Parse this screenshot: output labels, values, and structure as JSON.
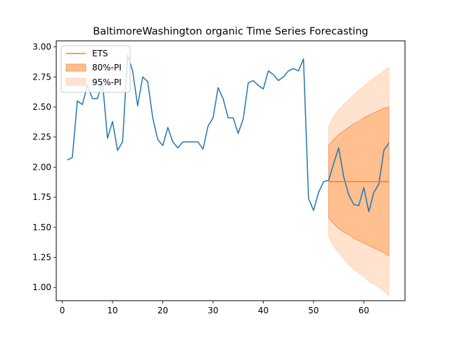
{
  "chart_data": {
    "type": "line",
    "title": "BaltimoreWashington organic Time Series Forecasting",
    "xlabel": "",
    "ylabel": "",
    "xlim": [
      -1.2,
      68.2
    ],
    "ylim": [
      0.89,
      3.05
    ],
    "xticks": [
      0,
      10,
      20,
      30,
      40,
      50,
      60
    ],
    "yticks": [
      1.0,
      1.25,
      1.5,
      1.75,
      2.0,
      2.25,
      2.5,
      2.75,
      3.0
    ],
    "ytick_labels": [
      "1.00",
      "1.25",
      "1.50",
      "1.75",
      "2.00",
      "2.25",
      "2.50",
      "2.75",
      "3.00"
    ],
    "grid": false,
    "legend_position": "top-left",
    "series": [
      {
        "name": "",
        "color": "#1f77b4",
        "x": [
          1,
          2,
          3,
          4,
          5,
          6,
          7,
          8,
          9,
          10,
          11,
          12,
          13,
          14,
          15,
          16,
          17,
          18,
          19,
          20,
          21,
          22,
          23,
          24,
          25,
          26,
          27,
          28,
          29,
          30,
          31,
          32,
          33,
          34,
          35,
          36,
          37,
          38,
          39,
          40,
          41,
          42,
          43,
          44,
          45,
          46,
          47,
          48,
          49,
          50,
          51,
          52,
          53,
          54,
          55,
          56,
          57,
          58,
          59,
          60,
          61,
          62,
          63,
          64,
          65
        ],
        "values": [
          2.06,
          2.08,
          2.55,
          2.52,
          2.68,
          2.57,
          2.57,
          2.71,
          2.24,
          2.38,
          2.14,
          2.21,
          2.93,
          2.8,
          2.51,
          2.75,
          2.71,
          2.41,
          2.23,
          2.18,
          2.33,
          2.21,
          2.16,
          2.21,
          2.21,
          2.21,
          2.21,
          2.15,
          2.34,
          2.41,
          2.66,
          2.57,
          2.41,
          2.41,
          2.28,
          2.4,
          2.7,
          2.72,
          2.68,
          2.65,
          2.8,
          2.77,
          2.72,
          2.75,
          2.8,
          2.82,
          2.8,
          2.9,
          1.74,
          1.64,
          1.79,
          1.88,
          1.89,
          2.03,
          2.16,
          1.92,
          1.77,
          1.69,
          1.68,
          1.83,
          1.63,
          1.79,
          1.86,
          2.14,
          2.2
        ]
      },
      {
        "name": "ETS",
        "color": "#ff7f0e",
        "x": [
          53,
          65
        ],
        "values": [
          1.88,
          1.88
        ]
      }
    ],
    "intervals": [
      {
        "name": "95%-PI",
        "color": "#ffe3cf",
        "x": [
          53,
          54,
          55,
          56,
          57,
          58,
          59,
          60,
          61,
          62,
          63,
          64,
          65
        ],
        "lower": [
          1.42,
          1.34,
          1.29,
          1.24,
          1.19,
          1.15,
          1.12,
          1.09,
          1.05,
          1.03,
          1.0,
          0.97,
          0.93
        ],
        "upper": [
          2.34,
          2.42,
          2.48,
          2.52,
          2.56,
          2.6,
          2.64,
          2.67,
          2.71,
          2.74,
          2.77,
          2.8,
          2.83
        ]
      },
      {
        "name": "80%-PI",
        "color": "#ffbf8f",
        "x": [
          53,
          54,
          55,
          56,
          57,
          58,
          59,
          60,
          61,
          62,
          63,
          64,
          65
        ],
        "lower": [
          1.58,
          1.53,
          1.49,
          1.46,
          1.44,
          1.41,
          1.39,
          1.37,
          1.35,
          1.33,
          1.31,
          1.29,
          1.26
        ],
        "upper": [
          2.18,
          2.23,
          2.27,
          2.3,
          2.33,
          2.36,
          2.38,
          2.41,
          2.43,
          2.45,
          2.47,
          2.49,
          2.5
        ]
      }
    ],
    "legend": [
      "ETS",
      "80%-PI",
      "95%-PI"
    ]
  }
}
